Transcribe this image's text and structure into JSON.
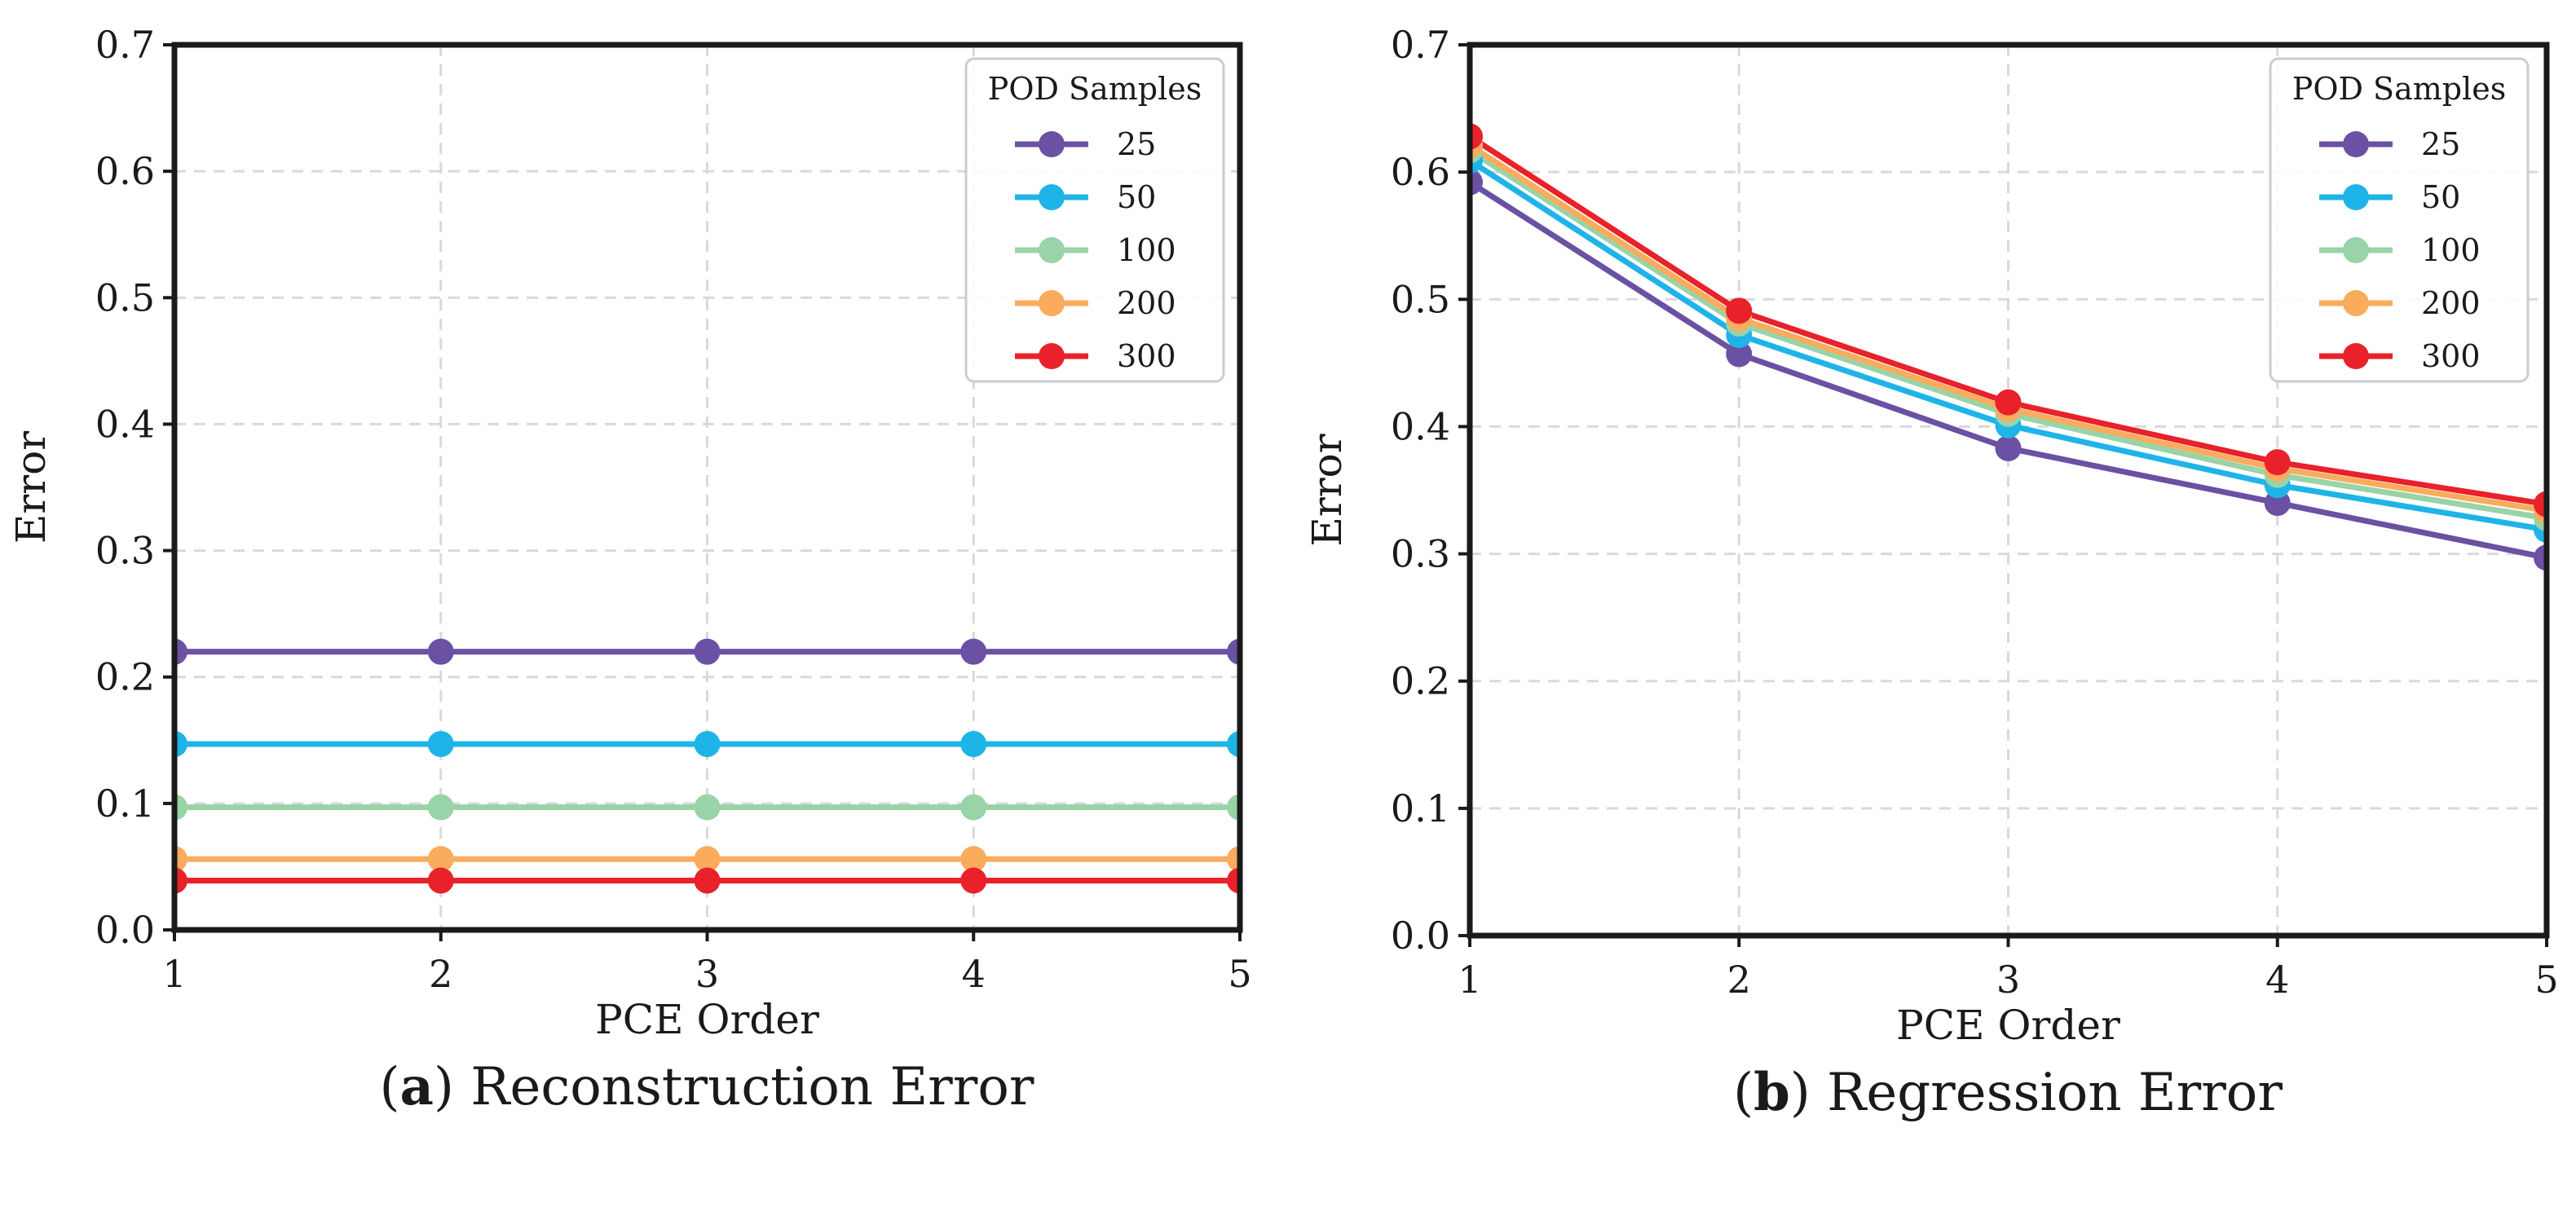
{
  "chart_data": [
    {
      "type": "line",
      "id": "a",
      "caption_letter": "a",
      "caption_text": "Reconstruction Error",
      "xlabel": "PCE Order",
      "ylabel": "Error",
      "x": [
        1,
        2,
        3,
        4,
        5
      ],
      "xlim": [
        1,
        5
      ],
      "ylim": [
        0,
        0.7
      ],
      "xticks": [
        "1",
        "2",
        "3",
        "4",
        "5"
      ],
      "yticks": [
        "0.0",
        "0.1",
        "0.2",
        "0.3",
        "0.4",
        "0.5",
        "0.6",
        "0.7"
      ],
      "grid": true,
      "legend_title": "POD Samples",
      "legend_position": "top-right",
      "series": [
        {
          "name": "25",
          "color": "#6a51a3",
          "values": [
            0.22,
            0.22,
            0.22,
            0.22,
            0.22
          ]
        },
        {
          "name": "50",
          "color": "#1fb4e8",
          "values": [
            0.147,
            0.147,
            0.147,
            0.147,
            0.147
          ]
        },
        {
          "name": "100",
          "color": "#99d3a8",
          "values": [
            0.097,
            0.097,
            0.097,
            0.097,
            0.097
          ]
        },
        {
          "name": "200",
          "color": "#fbab5c",
          "values": [
            0.056,
            0.056,
            0.056,
            0.056,
            0.056
          ]
        },
        {
          "name": "300",
          "color": "#e8212a",
          "values": [
            0.039,
            0.039,
            0.039,
            0.039,
            0.039
          ]
        }
      ]
    },
    {
      "type": "line",
      "id": "b",
      "caption_letter": "b",
      "caption_text": "Regression Error",
      "xlabel": "PCE Order",
      "ylabel": "Error",
      "x": [
        1,
        2,
        3,
        4,
        5
      ],
      "xlim": [
        1,
        5
      ],
      "ylim": [
        0,
        0.7
      ],
      "xticks": [
        "1",
        "2",
        "3",
        "4",
        "5"
      ],
      "yticks": [
        "0.0",
        "0.1",
        "0.2",
        "0.3",
        "0.4",
        "0.5",
        "0.6",
        "0.7"
      ],
      "grid": true,
      "legend_title": "POD Samples",
      "legend_position": "top-right",
      "series": [
        {
          "name": "25",
          "color": "#6a51a3",
          "values": [
            0.592,
            0.457,
            0.383,
            0.34,
            0.297
          ]
        },
        {
          "name": "50",
          "color": "#1fb4e8",
          "values": [
            0.609,
            0.472,
            0.401,
            0.354,
            0.319
          ]
        },
        {
          "name": "100",
          "color": "#99d3a8",
          "values": [
            0.617,
            0.481,
            0.41,
            0.362,
            0.328
          ]
        },
        {
          "name": "200",
          "color": "#fbab5c",
          "values": [
            0.621,
            0.485,
            0.414,
            0.367,
            0.334
          ]
        },
        {
          "name": "300",
          "color": "#e8212a",
          "values": [
            0.628,
            0.491,
            0.419,
            0.372,
            0.339
          ]
        }
      ]
    }
  ]
}
